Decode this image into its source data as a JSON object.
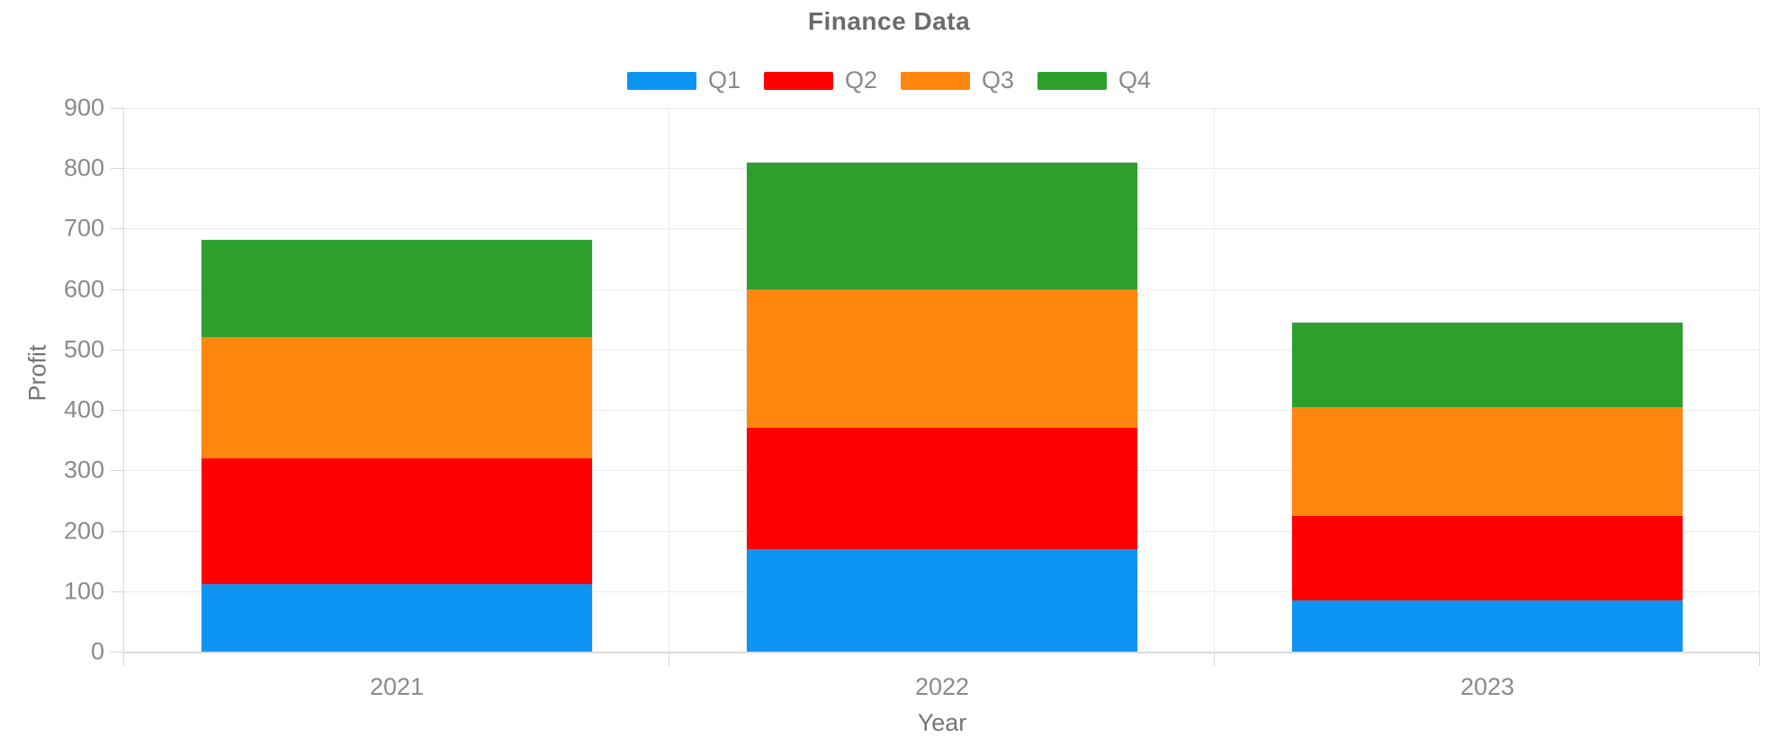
{
  "chart": {
    "title": "Finance Data"
  },
  "chart_data": {
    "type": "bar",
    "stacked": true,
    "title": "Finance Data",
    "xlabel": "Year",
    "ylabel": "Profit",
    "ylim": [
      0,
      900
    ],
    "y_tick_step": 100,
    "y_ticks": [
      "0",
      "100",
      "200",
      "300",
      "400",
      "500",
      "600",
      "700",
      "800",
      "900"
    ],
    "categories": [
      "2021",
      "2022",
      "2023"
    ],
    "series": [
      {
        "name": "Q1",
        "color": "#0e95f4",
        "values": [
          112,
          170,
          85
        ]
      },
      {
        "name": "Q2",
        "color": "#fe0000",
        "values": [
          208,
          200,
          140
        ]
      },
      {
        "name": "Q3",
        "color": "#ff870d",
        "values": [
          200,
          230,
          180
        ]
      },
      {
        "name": "Q4",
        "color": "#2da02c",
        "values": [
          162,
          210,
          140
        ]
      }
    ],
    "legend_position": "top",
    "legend_entries": [
      "Q1",
      "Q2",
      "Q3",
      "Q4"
    ],
    "grid": true
  },
  "colors": {
    "grid": "#ececec",
    "axis": "#d7d7d7",
    "baseline": "#dcdcdc",
    "tick_text": "#8a8a8a",
    "axis_title_text": "#757575",
    "title_text": "#6b6b6b",
    "background": "#ffffff"
  }
}
